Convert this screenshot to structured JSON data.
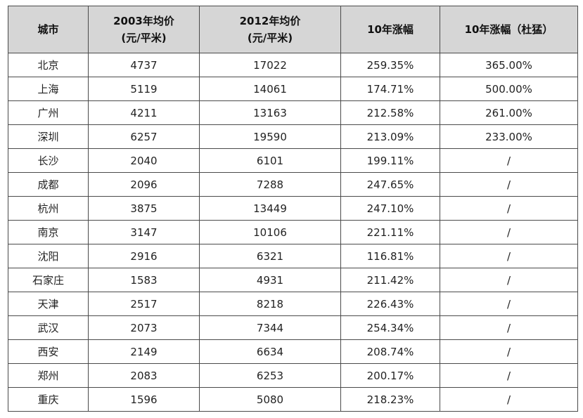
{
  "table": {
    "headers": [
      {
        "line1": "城市",
        "line2": ""
      },
      {
        "line1": "2003年均价",
        "line2": "(元/平米)"
      },
      {
        "line1": "2012年均价",
        "line2": "(元/平米)"
      },
      {
        "line1": "10年涨幅",
        "line2": ""
      },
      {
        "line1": "10年涨幅（杜猛）",
        "line2": ""
      }
    ],
    "rows": [
      [
        "北京",
        "4737",
        "17022",
        "259.35%",
        "365.00%"
      ],
      [
        "上海",
        "5119",
        "14061",
        "174.71%",
        "500.00%"
      ],
      [
        "广州",
        "4211",
        "13163",
        "212.58%",
        "261.00%"
      ],
      [
        "深圳",
        "6257",
        "19590",
        "213.09%",
        "233.00%"
      ],
      [
        "长沙",
        "2040",
        "6101",
        "199.11%",
        "/"
      ],
      [
        "成都",
        "2096",
        "7288",
        "247.65%",
        "/"
      ],
      [
        "杭州",
        "3875",
        "13449",
        "247.10%",
        "/"
      ],
      [
        "南京",
        "3147",
        "10106",
        "221.11%",
        "/"
      ],
      [
        "沈阳",
        "2916",
        "6321",
        "116.81%",
        "/"
      ],
      [
        "石家庄",
        "1583",
        "4931",
        "211.42%",
        "/"
      ],
      [
        "天津",
        "2517",
        "8218",
        "226.43%",
        "/"
      ],
      [
        "武汉",
        "2073",
        "7344",
        "254.34%",
        "/"
      ],
      [
        "西安",
        "2149",
        "6634",
        "208.74%",
        "/"
      ],
      [
        "郑州",
        "2083",
        "6253",
        "200.17%",
        "/"
      ],
      [
        "重庆",
        "1596",
        "5080",
        "218.23%",
        "/"
      ]
    ]
  }
}
